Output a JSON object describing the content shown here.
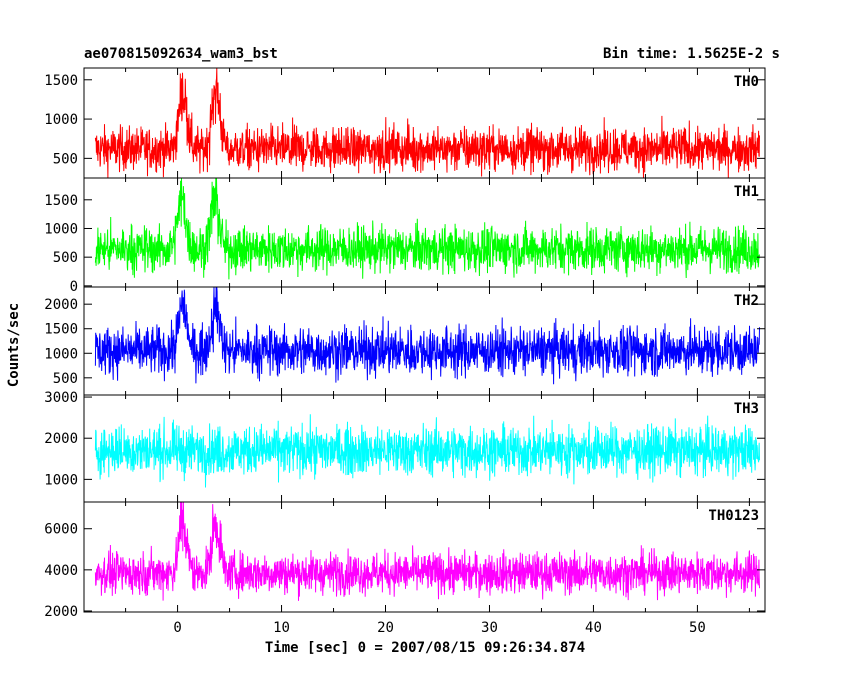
{
  "header": {
    "title": "ae070815092634_wam3_bst",
    "bin_time": "Bin time: 1.5625E-2 s"
  },
  "axes": {
    "xlabel": "Time [sec] 0 = 2007/08/15 09:26:34.874",
    "ylabel": "Counts/sec"
  },
  "chart_data": {
    "type": "line",
    "title": "ae070815092634_wam3_bst",
    "xlabel": "Time [sec] 0 = 2007/08/15 09:26:34.874",
    "ylabel": "Counts/sec",
    "xlim": [
      -9,
      56.5
    ],
    "x_ticks": [
      0,
      10,
      20,
      30,
      40,
      50
    ],
    "data_range": [
      -7.9,
      56.0
    ],
    "bin_time_s": 0.015625,
    "panels": [
      {
        "name": "TH0",
        "color": "#ff0000",
        "ylim": [
          250,
          1650
        ],
        "y_ticks": [
          500,
          1000,
          1500
        ],
        "baseline": 620,
        "spread": 140,
        "bursts": [
          {
            "t": 0.5,
            "peak": 1650,
            "width": 0.8
          },
          {
            "t": 3.7,
            "peak": 1650,
            "width": 0.8
          }
        ]
      },
      {
        "name": "TH1",
        "color": "#00ff00",
        "ylim": [
          -20,
          1880
        ],
        "y_ticks": [
          0,
          500,
          1000,
          1500
        ],
        "baseline": 640,
        "spread": 200,
        "bursts": [
          {
            "t": 0.4,
            "peak": 1900,
            "width": 0.8
          },
          {
            "t": 3.6,
            "peak": 1900,
            "width": 0.8
          }
        ]
      },
      {
        "name": "TH2",
        "color": "#0000ff",
        "ylim": [
          150,
          2350
        ],
        "y_ticks": [
          500,
          1000,
          1500,
          2000
        ],
        "baseline": 1050,
        "spread": 250,
        "bursts": [
          {
            "t": 0.5,
            "peak": 2300,
            "width": 0.8
          },
          {
            "t": 3.7,
            "peak": 2300,
            "width": 0.8
          }
        ]
      },
      {
        "name": "TH3",
        "color": "#00ffff",
        "ylim": [
          450,
          3050
        ],
        "y_ticks": [
          1000,
          2000,
          3000
        ],
        "baseline": 1700,
        "spread": 300,
        "bursts": []
      },
      {
        "name": "TH0123",
        "color": "#ff00ff",
        "ylim": [
          1950,
          7300
        ],
        "y_ticks": [
          2000,
          4000,
          6000
        ],
        "baseline": 3850,
        "spread": 500,
        "bursts": [
          {
            "t": 0.5,
            "peak": 7300,
            "width": 0.8
          },
          {
            "t": 3.7,
            "peak": 7300,
            "width": 0.8
          }
        ]
      }
    ]
  }
}
